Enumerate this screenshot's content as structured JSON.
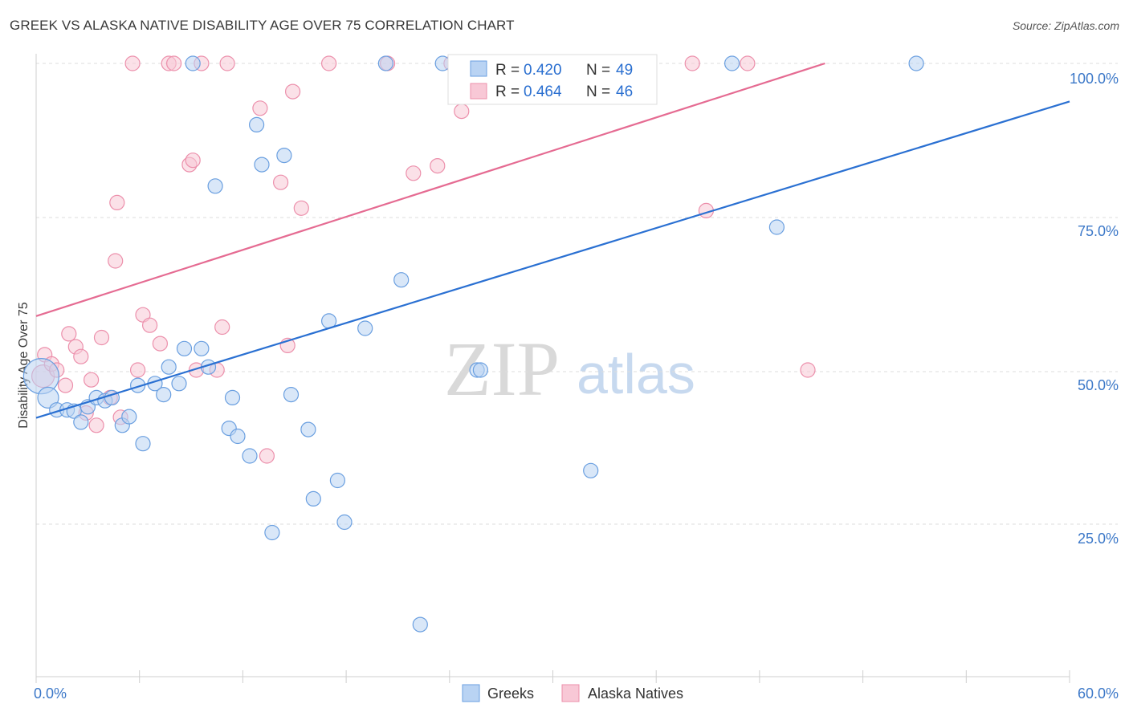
{
  "title": "GREEK VS ALASKA NATIVE DISABILITY AGE OVER 75 CORRELATION CHART",
  "source": "Source: ZipAtlas.com",
  "watermark": {
    "zip": "ZIP",
    "atlas": "atlas"
  },
  "colors": {
    "greeks_fill": "#b9d3f3",
    "greeks_stroke": "#6a9fe0",
    "greeks_line": "#2a70d2",
    "natives_fill": "#f8c8d6",
    "natives_stroke": "#ec8fab",
    "natives_line": "#e56b92",
    "tick_label": "#3c78c8",
    "grid": "#dddddd"
  },
  "legend": {
    "rows": [
      {
        "r_label": "R =",
        "r_value": "0.420",
        "n_label": "N =",
        "n_value": "49"
      },
      {
        "r_label": "R =",
        "r_value": "0.464",
        "n_label": "N =",
        "n_value": "46"
      }
    ]
  },
  "bottom_legend": {
    "greeks": "Greeks",
    "natives": "Alaska Natives"
  },
  "chart_data": {
    "type": "scatter",
    "title": "GREEK VS ALASKA NATIVE DISABILITY AGE OVER 75 CORRELATION CHART",
    "xlabel": "",
    "ylabel": "Disability Age Over 75",
    "xlim": [
      0,
      60
    ],
    "ylim": [
      0,
      105
    ],
    "x_tick_labels": [
      "0.0%",
      "60.0%"
    ],
    "y_ticks": [
      25,
      50,
      75,
      100
    ],
    "y_tick_labels": [
      "25.0%",
      "50.0%",
      "75.0%",
      "100.0%"
    ],
    "grid": true,
    "series": [
      {
        "name": "Greeks",
        "r": 0.42,
        "n": 49,
        "trend": {
          "x": [
            0,
            60
          ],
          "y": [
            42.2,
            93.8
          ]
        },
        "points": [
          [
            0.3,
            49,
            22
          ],
          [
            0.7,
            45.5,
            13
          ],
          [
            1.2,
            43.5,
            9
          ],
          [
            1.8,
            43.5,
            9
          ],
          [
            2.2,
            43.3,
            9
          ],
          [
            2.6,
            41.5,
            9
          ],
          [
            3.0,
            44.0,
            9
          ],
          [
            3.5,
            45.5,
            9
          ],
          [
            4.0,
            45.0,
            9
          ],
          [
            4.4,
            45.5,
            9
          ],
          [
            5.0,
            41.0,
            9
          ],
          [
            5.4,
            42.4,
            9
          ],
          [
            5.9,
            47.5,
            9
          ],
          [
            6.2,
            38.0,
            9
          ],
          [
            6.9,
            47.8,
            9
          ],
          [
            7.4,
            46.0,
            9
          ],
          [
            7.7,
            50.5,
            9
          ],
          [
            8.3,
            47.8,
            9
          ],
          [
            8.6,
            53.5,
            9
          ],
          [
            9.1,
            100.0,
            9
          ],
          [
            9.6,
            53.5,
            9
          ],
          [
            10.0,
            50.5,
            9
          ],
          [
            10.4,
            80.0,
            9
          ],
          [
            11.4,
            45.5,
            9
          ],
          [
            11.2,
            40.5,
            9
          ],
          [
            11.7,
            39.2,
            9
          ],
          [
            12.4,
            36.0,
            9
          ],
          [
            12.8,
            90.0,
            9
          ],
          [
            13.1,
            83.5,
            9
          ],
          [
            13.7,
            23.5,
            9
          ],
          [
            14.4,
            85.0,
            9
          ],
          [
            14.8,
            46.0,
            9
          ],
          [
            15.8,
            40.3,
            9
          ],
          [
            16.1,
            29.0,
            9
          ],
          [
            17.0,
            58.0,
            9
          ],
          [
            17.5,
            32.0,
            9
          ],
          [
            17.9,
            25.2,
            9
          ],
          [
            19.1,
            56.8,
            9
          ],
          [
            20.3,
            100.0,
            9
          ],
          [
            21.2,
            64.7,
            9
          ],
          [
            22.3,
            8.5,
            9
          ],
          [
            23.6,
            100.0,
            9
          ],
          [
            24.7,
            100.0,
            9
          ],
          [
            25.6,
            50.0,
            9
          ],
          [
            25.8,
            50.0,
            9
          ],
          [
            32.2,
            33.6,
            9
          ],
          [
            40.4,
            100.0,
            9
          ],
          [
            43.0,
            73.3,
            9
          ],
          [
            51.1,
            100.0,
            9
          ]
        ]
      },
      {
        "name": "Alaska Natives",
        "r": 0.464,
        "n": 46,
        "trend": {
          "x": [
            0,
            45.8
          ],
          "y": [
            58.8,
            100.0
          ]
        },
        "points": [
          [
            0.4,
            49,
            14
          ],
          [
            0.5,
            52.5,
            9
          ],
          [
            0.9,
            51.0,
            9
          ],
          [
            1.2,
            50.0,
            9
          ],
          [
            1.7,
            47.5,
            9
          ],
          [
            1.9,
            55.9,
            9
          ],
          [
            2.3,
            53.8,
            9
          ],
          [
            2.6,
            52.2,
            9
          ],
          [
            2.9,
            43.0,
            9
          ],
          [
            3.2,
            48.4,
            9
          ],
          [
            3.5,
            41.0,
            9
          ],
          [
            3.8,
            55.3,
            9
          ],
          [
            4.3,
            45.5,
            9
          ],
          [
            4.7,
            77.3,
            9
          ],
          [
            4.9,
            42.3,
            9
          ],
          [
            4.6,
            67.8,
            9
          ],
          [
            5.6,
            100.0,
            9
          ],
          [
            5.9,
            50.0,
            9
          ],
          [
            6.2,
            59.0,
            9
          ],
          [
            6.6,
            57.3,
            9
          ],
          [
            7.2,
            54.3,
            9
          ],
          [
            7.7,
            100.0,
            9
          ],
          [
            8.0,
            100.0,
            9
          ],
          [
            8.9,
            83.5,
            9
          ],
          [
            9.1,
            84.2,
            9
          ],
          [
            9.3,
            50.0,
            9
          ],
          [
            9.6,
            100.0,
            9
          ],
          [
            10.5,
            50.0,
            9
          ],
          [
            10.8,
            57.0,
            9
          ],
          [
            11.1,
            100.0,
            9
          ],
          [
            13.0,
            92.7,
            9
          ],
          [
            13.4,
            36.0,
            9
          ],
          [
            14.2,
            80.6,
            9
          ],
          [
            14.6,
            54.0,
            9
          ],
          [
            14.9,
            95.4,
            9
          ],
          [
            15.4,
            76.4,
            9
          ],
          [
            17.0,
            100.0,
            9
          ],
          [
            20.4,
            100.0,
            9
          ],
          [
            21.9,
            82.1,
            9
          ],
          [
            23.3,
            83.3,
            9
          ],
          [
            24.1,
            100.0,
            9
          ],
          [
            24.7,
            92.2,
            9
          ],
          [
            38.1,
            100.0,
            9
          ],
          [
            38.9,
            76.0,
            9
          ],
          [
            41.3,
            100.0,
            9
          ],
          [
            44.8,
            50.0,
            9
          ]
        ]
      }
    ]
  }
}
